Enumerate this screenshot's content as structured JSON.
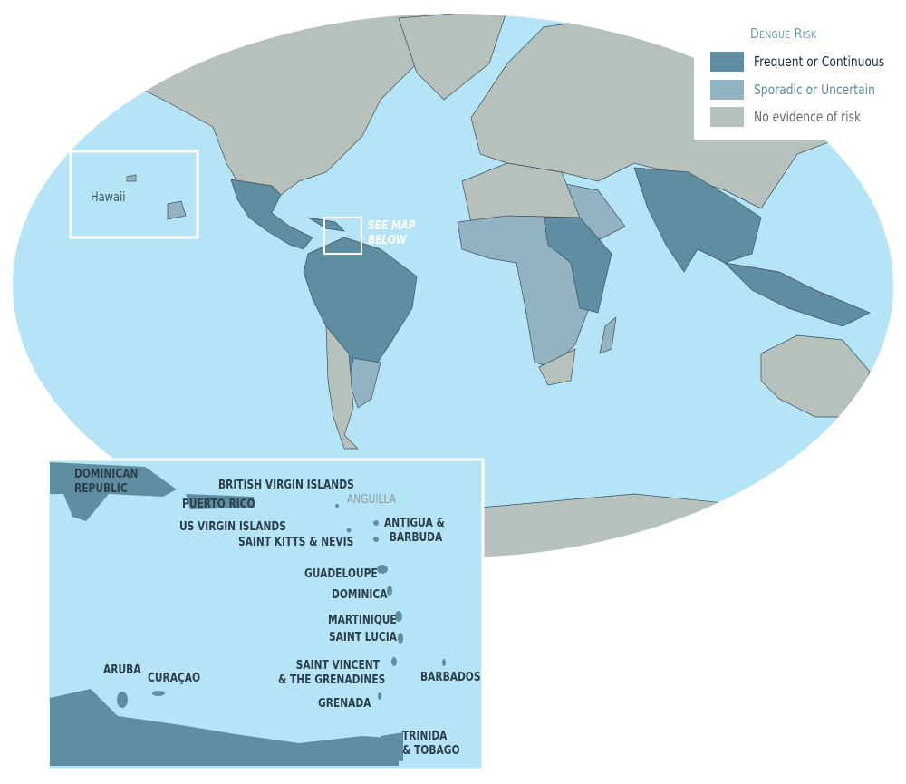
{
  "legend": {
    "title": "Dengue Risk",
    "items": [
      {
        "label": "Frequent or Continuous",
        "color": "#5f8ea3",
        "text_color": "#1f2d38"
      },
      {
        "label": "Sporadic or Uncertain",
        "color": "#93b3c3",
        "text_color": "#5a8ca2"
      },
      {
        "label": "No evidence of risk",
        "color": "#b7c1bc",
        "text_color": "#666b6c"
      }
    ]
  },
  "colors": {
    "ocean": "#b4e4f6",
    "frequent": "#5f8ea3",
    "sporadic": "#93b3c3",
    "none": "#b7c1bc",
    "border": "#3d4f5a"
  },
  "map": {
    "hawaii_label": "Hawaii",
    "see_map_below": [
      "SEE MAP",
      "BELOW"
    ]
  },
  "inset": {
    "labels": {
      "dominican_republic": [
        "DOMINICAN",
        "REPUBLIC"
      ],
      "british_virgin_islands": "BRITISH VIRGIN ISLANDS",
      "puerto_rico": "PUERTO RICO",
      "anguilla": "ANGUILLA",
      "us_virgin_islands": "US VIRGIN ISLANDS",
      "antigua_barbuda": [
        "ANTIGUA &",
        "BARBUDA"
      ],
      "saint_kitts_nevis": "SAINT KITTS & NEVIS",
      "guadeloupe": "GUADELOUPE",
      "dominica": "DOMINICA",
      "martinique": "MARTINIQUE",
      "saint_lucia": "SAINT LUCIA",
      "saint_vincent": [
        "SAINT VINCENT",
        "& THE GRENADINES"
      ],
      "barbados": "BARBADOS",
      "aruba": "ARUBA",
      "curacao": "CURAÇAO",
      "grenada": "GRENADA",
      "trinidad_tobago": [
        "TRINIDA",
        "& TOBAGO"
      ]
    }
  }
}
